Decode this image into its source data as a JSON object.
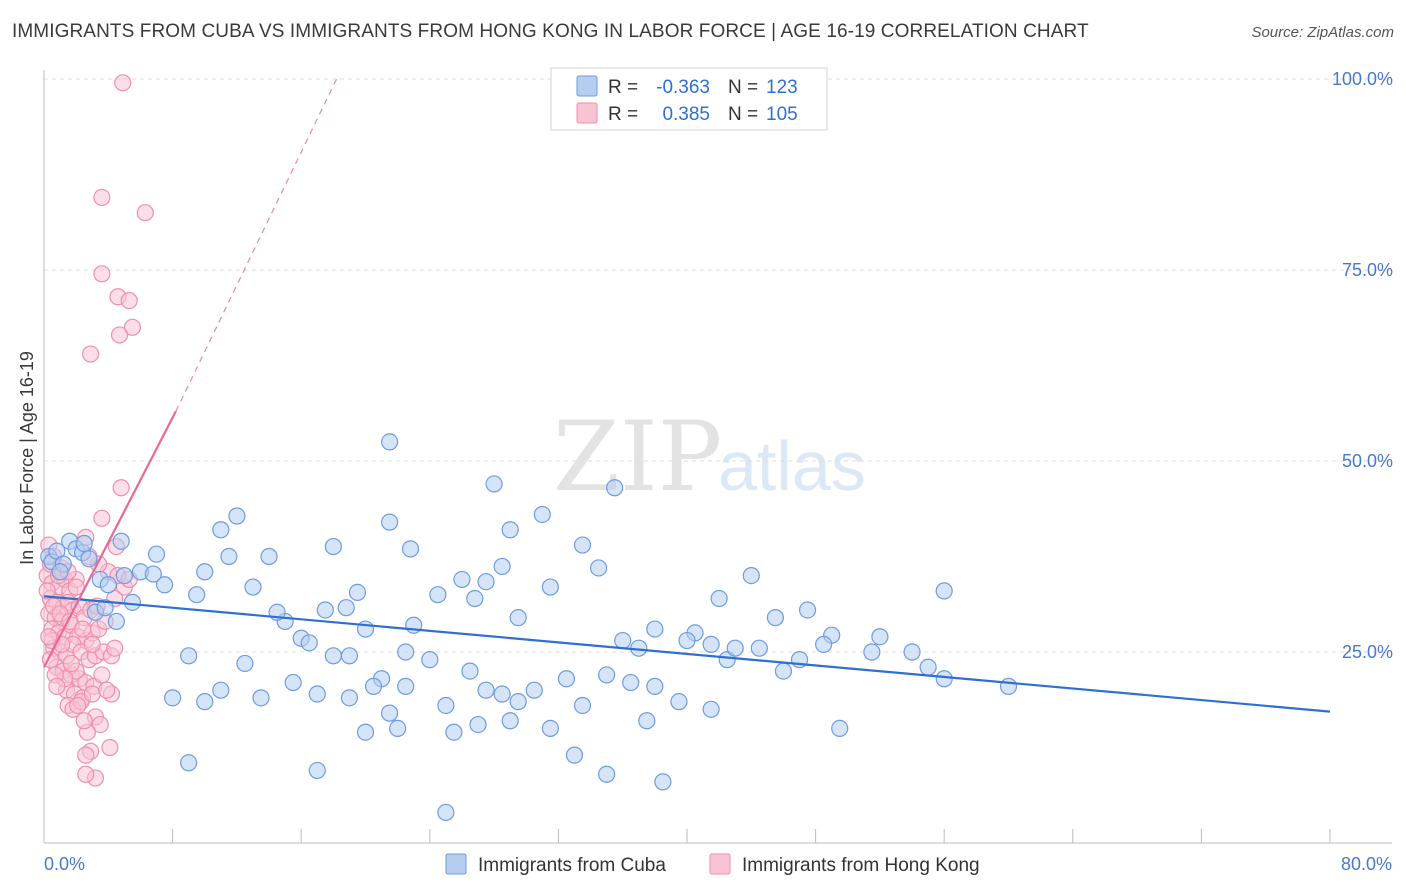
{
  "header": {
    "title": "IMMIGRANTS FROM CUBA VS IMMIGRANTS FROM HONG KONG IN LABOR FORCE | AGE 16-19 CORRELATION CHART",
    "source": "Source: ZipAtlas.com"
  },
  "watermark": {
    "zip": "ZIP",
    "atlas": "atlas"
  },
  "legend": {
    "r_label": "R =",
    "n_label": "N =",
    "cuba": {
      "r": "-0.363",
      "n": "123"
    },
    "hongkong": {
      "r": "0.385",
      "n": "105"
    }
  },
  "colors": {
    "cuba_fill": "#b5cdf0",
    "cuba_stroke": "#6e9be0",
    "cuba_line": "#2e6fd4",
    "hk_fill": "#f8c3d3",
    "hk_stroke": "#ef8fae",
    "hk_line": "#e8679a"
  },
  "chart_data": {
    "type": "scatter",
    "title": "IMMIGRANTS FROM CUBA VS IMMIGRANTS FROM HONG KONG IN LABOR FORCE | AGE 16-19 CORRELATION CHART",
    "xlabel": "",
    "ylabel": "In Labor Force | Age 16-19",
    "xlim": [
      0,
      80
    ],
    "ylim": [
      0,
      100
    ],
    "x_tick_labels": [
      "0.0%",
      "80.0%"
    ],
    "y_tick_labels": [
      "100.0%",
      "75.0%",
      "50.0%",
      "25.0%"
    ],
    "y_ticks": [
      100,
      75,
      50,
      25
    ],
    "grid": true,
    "legend_placement": "bottom",
    "series": [
      {
        "name": "Immigrants from Cuba",
        "R": -0.363,
        "N": 123,
        "trend": {
          "x0": 0,
          "y0": 32.3,
          "x1": 80,
          "y1": 17.2
        },
        "points": [
          [
            0.3,
            37.5
          ],
          [
            0.5,
            36.8
          ],
          [
            0.8,
            38.2
          ],
          [
            1.2,
            36.5
          ],
          [
            1.6,
            39.5
          ],
          [
            2.0,
            38.5
          ],
          [
            2.4,
            38.0
          ],
          [
            2.8,
            37.2
          ],
          [
            3.5,
            34.5
          ],
          [
            4.0,
            33.8
          ],
          [
            3.2,
            30.2
          ],
          [
            1.0,
            35.5
          ],
          [
            2.5,
            39.2
          ],
          [
            5.0,
            35.0
          ],
          [
            6.0,
            35.5
          ],
          [
            4.5,
            29.0
          ],
          [
            3.8,
            30.8
          ],
          [
            7.5,
            33.8
          ],
          [
            7.0,
            37.8
          ],
          [
            6.8,
            35.2
          ],
          [
            5.5,
            31.5
          ],
          [
            4.8,
            39.5
          ],
          [
            9.5,
            32.5
          ],
          [
            11.5,
            37.5
          ],
          [
            10.0,
            35.5
          ],
          [
            12.0,
            42.8
          ],
          [
            11.0,
            41.0
          ],
          [
            13.0,
            33.5
          ],
          [
            14.0,
            37.5
          ],
          [
            15.0,
            29.0
          ],
          [
            16.0,
            26.8
          ],
          [
            17.5,
            30.5
          ],
          [
            18.0,
            38.8
          ],
          [
            19.5,
            32.8
          ],
          [
            20.0,
            28.0
          ],
          [
            16.5,
            26.2
          ],
          [
            14.5,
            30.2
          ],
          [
            19.0,
            24.5
          ],
          [
            21.0,
            21.5
          ],
          [
            22.5,
            25.0
          ],
          [
            21.5,
            42.0
          ],
          [
            22.8,
            38.5
          ],
          [
            26.0,
            34.5
          ],
          [
            28.0,
            47.0
          ],
          [
            29.0,
            41.0
          ],
          [
            31.0,
            43.0
          ],
          [
            33.5,
            39.0
          ],
          [
            34.5,
            36.0
          ],
          [
            26.8,
            32.0
          ],
          [
            31.5,
            33.5
          ],
          [
            29.5,
            29.5
          ],
          [
            28.5,
            36.2
          ],
          [
            27.5,
            34.2
          ],
          [
            36.0,
            26.5
          ],
          [
            37.0,
            25.5
          ],
          [
            38.0,
            28.0
          ],
          [
            40.5,
            27.5
          ],
          [
            41.5,
            26.0
          ],
          [
            44.5,
            25.5
          ],
          [
            45.5,
            29.5
          ],
          [
            47.0,
            24.0
          ],
          [
            49.0,
            27.2
          ],
          [
            51.5,
            25.0
          ],
          [
            54.0,
            25.0
          ],
          [
            56.0,
            33.0
          ],
          [
            40.0,
            26.5
          ],
          [
            42.5,
            24.0
          ],
          [
            60.0,
            20.5
          ],
          [
            37.5,
            16.0
          ],
          [
            49.5,
            15.0
          ],
          [
            8.0,
            19.0
          ],
          [
            9.0,
            24.5
          ],
          [
            10.0,
            18.5
          ],
          [
            11.0,
            20.0
          ],
          [
            12.5,
            23.5
          ],
          [
            13.5,
            19.0
          ],
          [
            15.5,
            21.0
          ],
          [
            17.0,
            19.5
          ],
          [
            18.0,
            24.5
          ],
          [
            19.0,
            19.0
          ],
          [
            20.5,
            20.5
          ],
          [
            21.5,
            17.0
          ],
          [
            22.5,
            20.5
          ],
          [
            24.0,
            24.0
          ],
          [
            25.0,
            18.0
          ],
          [
            26.5,
            22.5
          ],
          [
            27.5,
            20.0
          ],
          [
            28.5,
            19.5
          ],
          [
            29.5,
            18.5
          ],
          [
            30.5,
            20.0
          ],
          [
            32.5,
            21.5
          ],
          [
            33.5,
            18.0
          ],
          [
            35.0,
            22.0
          ],
          [
            36.5,
            21.0
          ],
          [
            38.0,
            20.5
          ],
          [
            39.5,
            18.5
          ],
          [
            41.5,
            17.5
          ],
          [
            43.0,
            25.5
          ],
          [
            46.0,
            22.5
          ],
          [
            48.5,
            26.0
          ],
          [
            55.0,
            23.0
          ],
          [
            56.0,
            21.5
          ],
          [
            20.0,
            14.5
          ],
          [
            22.0,
            15.0
          ],
          [
            25.5,
            14.5
          ],
          [
            27.0,
            15.5
          ],
          [
            29.0,
            16.0
          ],
          [
            31.5,
            15.0
          ],
          [
            33.0,
            11.5
          ],
          [
            35.0,
            9.0
          ],
          [
            38.5,
            8.0
          ],
          [
            9.0,
            10.5
          ],
          [
            17.0,
            9.5
          ],
          [
            25.0,
            4.0
          ],
          [
            21.5,
            52.5
          ],
          [
            35.5,
            46.5
          ],
          [
            42.0,
            32.0
          ],
          [
            44.0,
            35.0
          ],
          [
            47.5,
            30.5
          ],
          [
            52.0,
            27.0
          ],
          [
            23.0,
            28.5
          ],
          [
            18.8,
            30.8
          ],
          [
            24.5,
            32.5
          ]
        ]
      },
      {
        "name": "Immigrants from Hong Kong",
        "R": 0.385,
        "N": 105,
        "trend": {
          "x0": 0,
          "y0": 23.0,
          "x1": 8.2,
          "y1": 56.5,
          "dash_to": {
            "x": 18.2,
            "y": 100
          }
        },
        "points": [
          [
            4.9,
            99.5
          ],
          [
            3.6,
            84.5
          ],
          [
            6.3,
            82.5
          ],
          [
            3.6,
            74.5
          ],
          [
            4.6,
            71.5
          ],
          [
            5.3,
            71.0
          ],
          [
            5.5,
            67.5
          ],
          [
            4.7,
            66.5
          ],
          [
            2.9,
            64.0
          ],
          [
            4.8,
            46.5
          ],
          [
            3.6,
            42.5
          ],
          [
            2.6,
            40.0
          ],
          [
            4.5,
            38.8
          ],
          [
            0.3,
            39.0
          ],
          [
            0.6,
            37.5
          ],
          [
            1.1,
            36.0
          ],
          [
            0.2,
            35.0
          ],
          [
            0.5,
            34.0
          ],
          [
            0.9,
            33.5
          ],
          [
            1.3,
            34.5
          ],
          [
            1.6,
            33.0
          ],
          [
            2.0,
            34.5
          ],
          [
            0.4,
            32.0
          ],
          [
            0.8,
            31.5
          ],
          [
            1.2,
            30.8
          ],
          [
            1.5,
            31.5
          ],
          [
            0.3,
            30.0
          ],
          [
            0.7,
            29.5
          ],
          [
            1.1,
            29.0
          ],
          [
            1.8,
            30.5
          ],
          [
            2.2,
            31.0
          ],
          [
            2.5,
            29.5
          ],
          [
            2.9,
            30.5
          ],
          [
            3.3,
            31.0
          ],
          [
            0.5,
            28.0
          ],
          [
            0.9,
            27.5
          ],
          [
            1.3,
            27.0
          ],
          [
            1.7,
            28.5
          ],
          [
            2.1,
            27.0
          ],
          [
            2.6,
            26.5
          ],
          [
            3.0,
            27.5
          ],
          [
            3.4,
            28.0
          ],
          [
            0.6,
            25.5
          ],
          [
            1.0,
            25.0
          ],
          [
            1.4,
            24.5
          ],
          [
            1.8,
            26.0
          ],
          [
            2.3,
            25.0
          ],
          [
            2.8,
            24.0
          ],
          [
            3.2,
            24.5
          ],
          [
            3.7,
            25.0
          ],
          [
            4.2,
            24.5
          ],
          [
            0.8,
            23.0
          ],
          [
            1.2,
            22.5
          ],
          [
            1.7,
            22.0
          ],
          [
            2.2,
            21.5
          ],
          [
            2.6,
            21.0
          ],
          [
            3.1,
            20.5
          ],
          [
            1.4,
            20.0
          ],
          [
            1.9,
            19.5
          ],
          [
            2.4,
            19.0
          ],
          [
            1.5,
            18.0
          ],
          [
            1.8,
            17.5
          ],
          [
            2.3,
            18.5
          ],
          [
            3.0,
            19.5
          ],
          [
            4.2,
            19.5
          ],
          [
            3.2,
            16.5
          ],
          [
            3.5,
            15.5
          ],
          [
            2.7,
            14.5
          ],
          [
            2.9,
            12.0
          ],
          [
            2.6,
            11.5
          ],
          [
            4.1,
            12.5
          ],
          [
            3.2,
            8.5
          ],
          [
            2.6,
            9.0
          ],
          [
            0.4,
            36.5
          ],
          [
            0.9,
            35.0
          ],
          [
            1.5,
            35.5
          ],
          [
            2.0,
            33.5
          ],
          [
            0.2,
            33.0
          ],
          [
            0.6,
            31.0
          ],
          [
            1.0,
            30.0
          ],
          [
            1.6,
            29.0
          ],
          [
            2.4,
            28.0
          ],
          [
            3.8,
            29.0
          ],
          [
            4.4,
            32.0
          ],
          [
            5.0,
            33.5
          ],
          [
            4.0,
            35.5
          ],
          [
            3.4,
            36.5
          ],
          [
            2.8,
            37.5
          ],
          [
            0.5,
            26.5
          ],
          [
            1.1,
            26.0
          ],
          [
            0.4,
            24.0
          ],
          [
            4.6,
            35.0
          ],
          [
            5.3,
            34.5
          ],
          [
            3.6,
            22.0
          ],
          [
            2.0,
            22.5
          ],
          [
            1.3,
            21.5
          ],
          [
            0.7,
            22.0
          ],
          [
            3.9,
            20.0
          ],
          [
            2.5,
            16.0
          ],
          [
            2.1,
            18.0
          ],
          [
            0.3,
            27.0
          ],
          [
            1.7,
            23.5
          ],
          [
            3.0,
            26.0
          ],
          [
            0.8,
            20.5
          ],
          [
            4.4,
            25.5
          ]
        ]
      }
    ]
  },
  "bottom_legend": {
    "cuba_label": "Immigrants from Cuba",
    "hongkong_label": "Immigrants from Hong Kong"
  }
}
